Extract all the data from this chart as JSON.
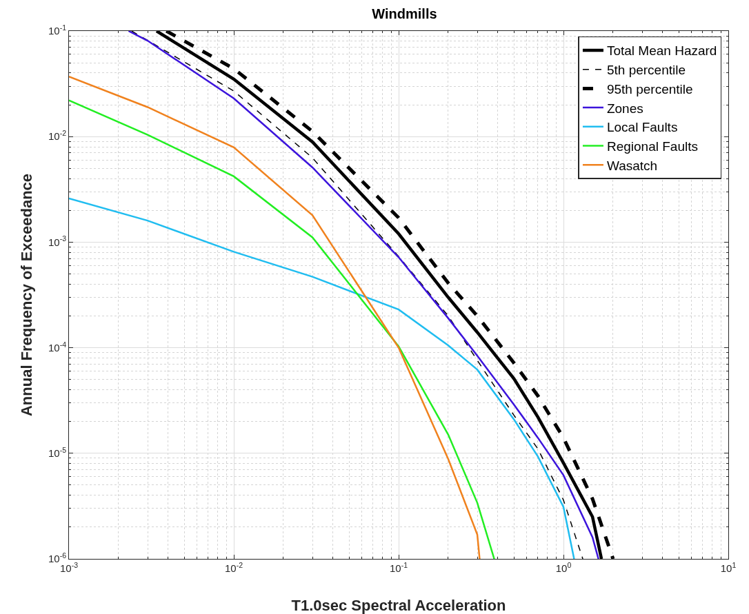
{
  "chart_data": {
    "type": "line",
    "title": "Windmills",
    "xlabel": "T1.0sec Spectral Acceleration",
    "ylabel": "Annual Frequency of Exceedance",
    "log": "xy",
    "grid": true,
    "legend": "top right",
    "marker": "none",
    "xlim": [
      0.001,
      10
    ],
    "ylim": [
      1e-06,
      0.1
    ],
    "xticks": [
      {
        "value": 0.001,
        "label": "10$^{-3}$"
      },
      {
        "value": 0.01,
        "label": "10$^{-2}$"
      },
      {
        "value": 0.1,
        "label": "10$^{-1}$"
      },
      {
        "value": 1,
        "label": "10$^{0}$"
      },
      {
        "value": 10,
        "label": "10$^{1}$"
      }
    ],
    "yticks": [
      {
        "value": 1e-06,
        "label": "10$^{-6}$"
      },
      {
        "value": 1e-05,
        "label": "10$^{-5}$"
      },
      {
        "value": 0.0001,
        "label": "10$^{-4}$"
      },
      {
        "value": 0.001,
        "label": "10$^{-3}$"
      },
      {
        "value": 0.01,
        "label": "10$^{-2}$"
      },
      {
        "value": 0.1,
        "label": "10$^{-1}$"
      }
    ],
    "series": [
      {
        "name": "Total Mean Hazard",
        "color": "#000000",
        "line_style": "solid",
        "x": [
          0.0034,
          0.01,
          0.03,
          0.1,
          0.2,
          0.3,
          0.5,
          0.7,
          1,
          1.5,
          1.7
        ],
        "values": [
          0.1,
          0.035,
          0.0089,
          0.0012,
          0.0003,
          0.00014,
          5.1e-05,
          2.2e-05,
          8.1e-06,
          2.5e-06,
          1e-06
        ]
      },
      {
        "name": "5th percentile",
        "color": "#000000",
        "line_style": "dashed",
        "x": [
          0.0024,
          0.01,
          0.03,
          0.1,
          0.2,
          0.3,
          0.5,
          0.7,
          1,
          1.31
        ],
        "values": [
          0.1,
          0.027,
          0.0063,
          0.00073,
          0.0002,
          7.6e-05,
          2.3e-05,
          1.1e-05,
          3.6e-06,
          1e-06
        ]
      },
      {
        "name": "95th percentile",
        "color": "#000000",
        "line_style": "dashed",
        "x": [
          0.0039,
          0.01,
          0.03,
          0.1,
          0.2,
          0.3,
          0.5,
          0.7,
          1,
          1.5,
          2
        ],
        "values": [
          0.1,
          0.044,
          0.0112,
          0.0017,
          0.00041,
          0.0002,
          7.2e-05,
          3.5e-05,
          1.4e-05,
          3.7e-06,
          1e-06
        ]
      },
      {
        "name": "Zones",
        "color": "#3c14dc",
        "line_style": "solid",
        "x": [
          0.0023,
          0.003,
          0.01,
          0.03,
          0.1,
          0.2,
          0.3,
          0.5,
          0.7,
          1,
          1.5,
          1.63
        ],
        "values": [
          0.1,
          0.081,
          0.023,
          0.0051,
          0.00072,
          0.00019,
          8.4e-05,
          2.9e-05,
          1.4e-05,
          6.2e-06,
          1.6e-06,
          1e-06
        ]
      },
      {
        "name": "Local Faults",
        "color": "#20bdf0",
        "line_style": "solid",
        "x": [
          0.001,
          0.003,
          0.01,
          0.03,
          0.1,
          0.2,
          0.3,
          0.5,
          0.7,
          1,
          1.16
        ],
        "values": [
          0.0026,
          0.0016,
          0.00081,
          0.00047,
          0.00023,
          0.000105,
          6.2e-05,
          2.1e-05,
          9.3e-06,
          3.1e-06,
          1e-06
        ]
      },
      {
        "name": "Regional Faults",
        "color": "#22ee22",
        "line_style": "solid",
        "x": [
          0.001,
          0.003,
          0.01,
          0.03,
          0.1,
          0.2,
          0.3,
          0.38
        ],
        "values": [
          0.022,
          0.0104,
          0.0042,
          0.00111,
          0.000103,
          1.5e-05,
          3.4e-06,
          1e-06
        ]
      },
      {
        "name": "Wasatch",
        "color": "#f0821e",
        "line_style": "solid",
        "x": [
          0.001,
          0.003,
          0.01,
          0.03,
          0.1,
          0.2,
          0.3,
          0.31
        ],
        "values": [
          0.037,
          0.019,
          0.0079,
          0.0018,
          0.0001,
          8.8e-06,
          1.7e-06,
          1e-06
        ]
      }
    ]
  }
}
